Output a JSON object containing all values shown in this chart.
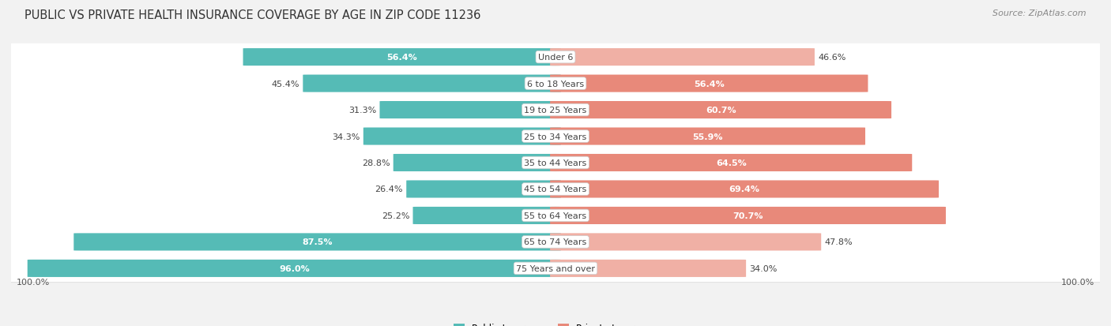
{
  "title": "PUBLIC VS PRIVATE HEALTH INSURANCE COVERAGE BY AGE IN ZIP CODE 11236",
  "source": "Source: ZipAtlas.com",
  "categories": [
    "Under 6",
    "6 to 18 Years",
    "19 to 25 Years",
    "25 to 34 Years",
    "35 to 44 Years",
    "45 to 54 Years",
    "55 to 64 Years",
    "65 to 74 Years",
    "75 Years and over"
  ],
  "public_values": [
    56.4,
    45.4,
    31.3,
    34.3,
    28.8,
    26.4,
    25.2,
    87.5,
    96.0
  ],
  "private_values": [
    46.6,
    56.4,
    60.7,
    55.9,
    64.5,
    69.4,
    70.7,
    47.8,
    34.0
  ],
  "public_color": "#55bbb6",
  "private_color": "#e8897a",
  "private_color_light": "#f0b0a5",
  "bg_color": "#f2f2f2",
  "row_bg_color": "#ffffff",
  "row_shadow_color": "#d8d8d8",
  "max_value": 100.0,
  "legend_public": "Public Insurance",
  "legend_private": "Private Insurance",
  "title_fontsize": 10.5,
  "source_fontsize": 8,
  "label_fontsize": 8,
  "cat_fontsize": 8,
  "bottom_label": "100.0%"
}
